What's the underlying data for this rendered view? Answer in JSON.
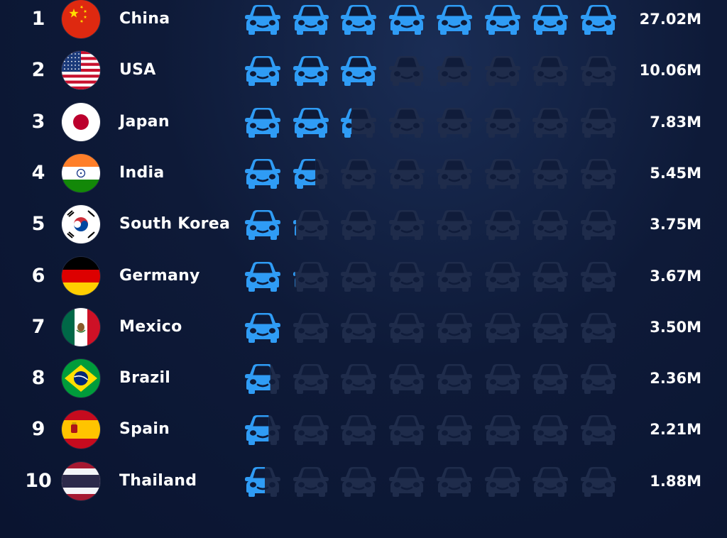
{
  "chart_data": {
    "type": "pictogram-bar",
    "unit_label": "M",
    "unit_value": 3.38,
    "max_icons": 8,
    "colors": {
      "filled": "#2f9cf5",
      "empty": "#1f2c4b",
      "text": "#ffffff",
      "background": "#0e1a38"
    },
    "rows": [
      {
        "rank": "1",
        "country": "China",
        "flag": "china",
        "value": 27.02,
        "value_label": "27.02M"
      },
      {
        "rank": "2",
        "country": "USA",
        "flag": "usa",
        "value": 10.06,
        "value_label": "10.06M"
      },
      {
        "rank": "3",
        "country": "Japan",
        "flag": "japan",
        "value": 7.83,
        "value_label": "7.83M"
      },
      {
        "rank": "4",
        "country": "India",
        "flag": "india",
        "value": 5.45,
        "value_label": "5.45M"
      },
      {
        "rank": "5",
        "country": "South Korea",
        "flag": "south-korea",
        "value": 3.75,
        "value_label": "3.75M"
      },
      {
        "rank": "6",
        "country": "Germany",
        "flag": "germany",
        "value": 3.67,
        "value_label": "3.67M"
      },
      {
        "rank": "7",
        "country": "Mexico",
        "flag": "mexico",
        "value": 3.5,
        "value_label": "3.50M"
      },
      {
        "rank": "8",
        "country": "Brazil",
        "flag": "brazil",
        "value": 2.36,
        "value_label": "2.36M"
      },
      {
        "rank": "9",
        "country": "Spain",
        "flag": "spain",
        "value": 2.21,
        "value_label": "2.21M"
      },
      {
        "rank": "10",
        "country": "Thailand",
        "flag": "thailand",
        "value": 1.88,
        "value_label": "1.88M"
      }
    ]
  }
}
